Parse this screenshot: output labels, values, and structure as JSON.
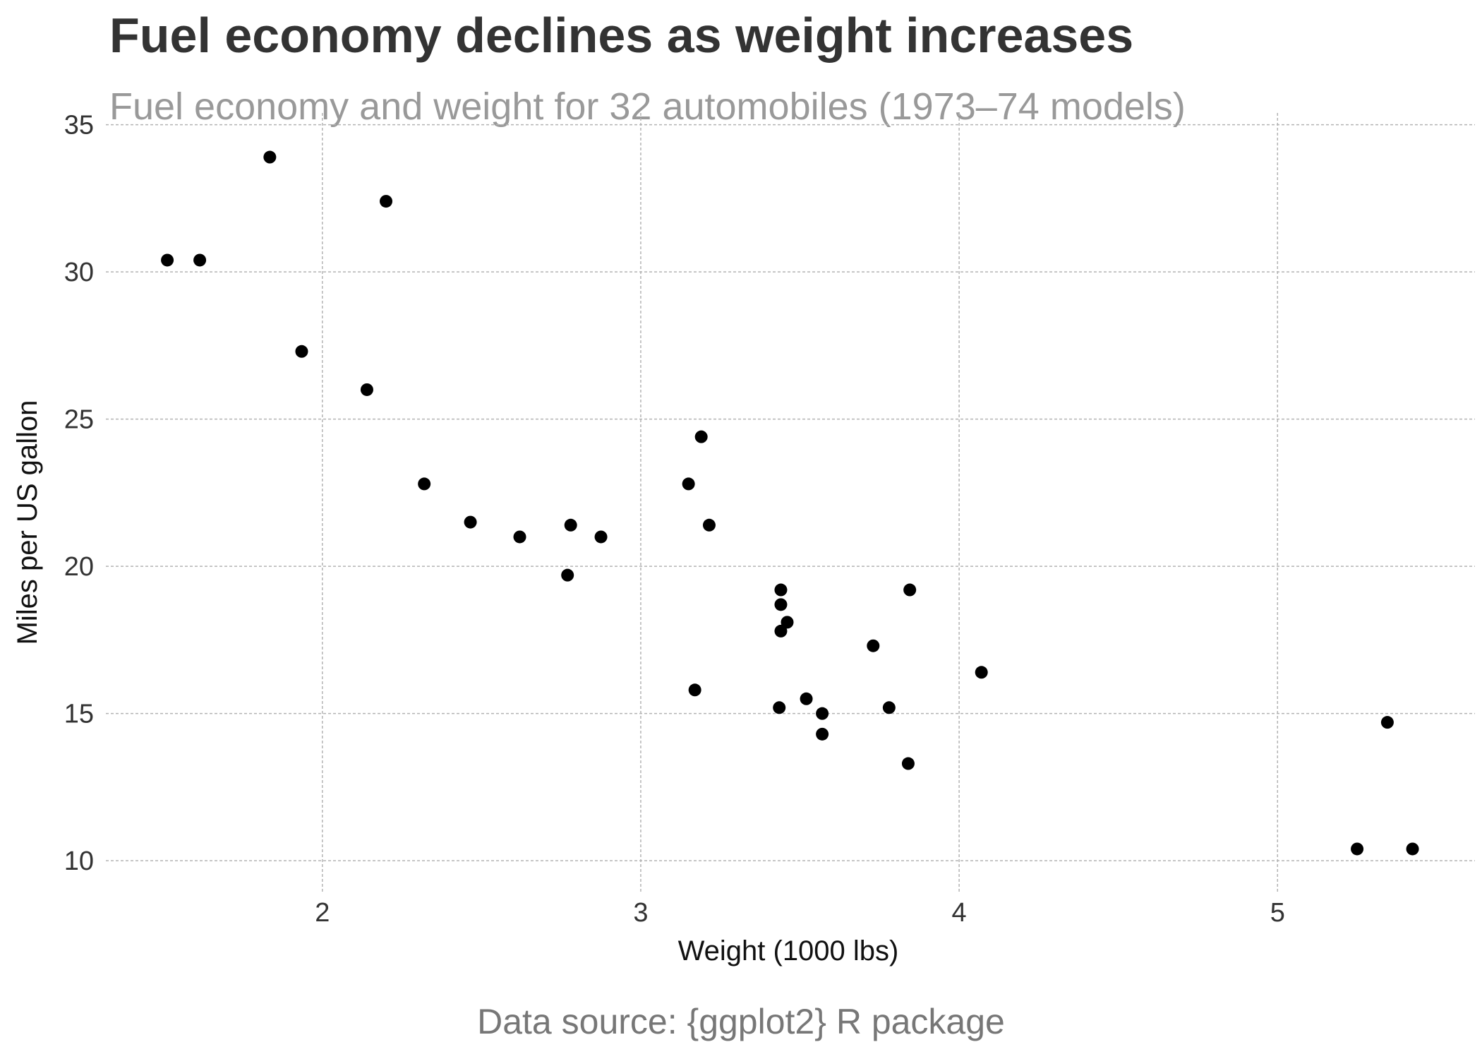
{
  "chart_data": {
    "type": "scatter",
    "title": "Fuel economy declines as weight increases",
    "subtitle": "Fuel economy and weight for 32 automobiles (1973–74 models)",
    "caption": "Data source: {ggplot2} R package",
    "xlabel": "Weight (1000 lbs)",
    "ylabel": "Miles per US gallon",
    "xlim": [
      1.32,
      5.62
    ],
    "ylim": [
      8.9,
      35.4
    ],
    "xticks": [
      2,
      3,
      4,
      5
    ],
    "yticks": [
      10,
      15,
      20,
      25,
      30,
      35
    ],
    "grid": true,
    "point_color": "#000000",
    "grid_color": "#b3b3b3",
    "points": [
      {
        "x": 2.62,
        "y": 21.0
      },
      {
        "x": 2.875,
        "y": 21.0
      },
      {
        "x": 2.32,
        "y": 22.8
      },
      {
        "x": 3.215,
        "y": 21.4
      },
      {
        "x": 3.44,
        "y": 18.7
      },
      {
        "x": 3.46,
        "y": 18.1
      },
      {
        "x": 3.57,
        "y": 14.3
      },
      {
        "x": 3.19,
        "y": 24.4
      },
      {
        "x": 3.15,
        "y": 22.8
      },
      {
        "x": 3.44,
        "y": 19.2
      },
      {
        "x": 3.44,
        "y": 17.8
      },
      {
        "x": 4.07,
        "y": 16.4
      },
      {
        "x": 3.73,
        "y": 17.3
      },
      {
        "x": 3.78,
        "y": 15.2
      },
      {
        "x": 5.25,
        "y": 10.4
      },
      {
        "x": 5.424,
        "y": 10.4
      },
      {
        "x": 5.345,
        "y": 14.7
      },
      {
        "x": 2.2,
        "y": 32.4
      },
      {
        "x": 1.615,
        "y": 30.4
      },
      {
        "x": 1.835,
        "y": 33.9
      },
      {
        "x": 2.465,
        "y": 21.5
      },
      {
        "x": 3.52,
        "y": 15.5
      },
      {
        "x": 3.435,
        "y": 15.2
      },
      {
        "x": 3.84,
        "y": 13.3
      },
      {
        "x": 3.845,
        "y": 19.2
      },
      {
        "x": 1.935,
        "y": 27.3
      },
      {
        "x": 2.14,
        "y": 26.0
      },
      {
        "x": 1.513,
        "y": 30.4
      },
      {
        "x": 3.17,
        "y": 15.8
      },
      {
        "x": 2.77,
        "y": 19.7
      },
      {
        "x": 3.57,
        "y": 15.0
      },
      {
        "x": 2.78,
        "y": 21.4
      }
    ]
  }
}
